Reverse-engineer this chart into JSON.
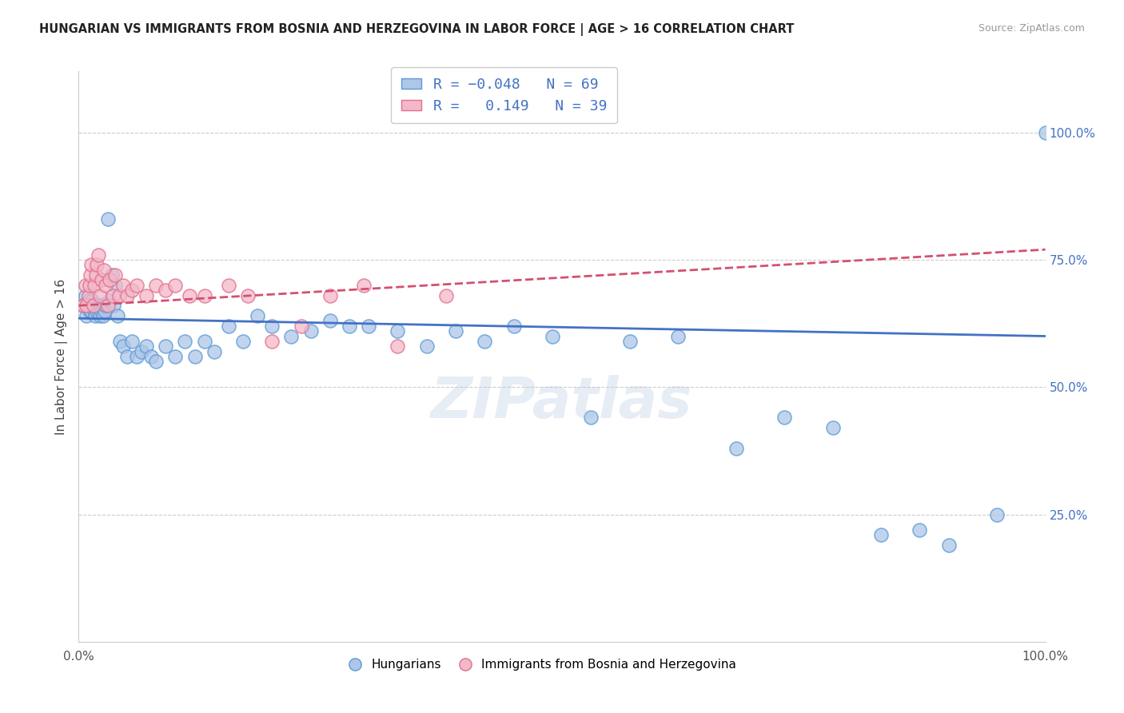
{
  "title": "HUNGARIAN VS IMMIGRANTS FROM BOSNIA AND HERZEGOVINA IN LABOR FORCE | AGE > 16 CORRELATION CHART",
  "source": "Source: ZipAtlas.com",
  "ylabel": "In Labor Force | Age > 16",
  "right_ytick_labels": [
    "100.0%",
    "75.0%",
    "50.0%",
    "25.0%"
  ],
  "right_ytick_values": [
    1.0,
    0.75,
    0.5,
    0.25
  ],
  "xmin": 0.0,
  "xmax": 1.0,
  "ymin": 0.0,
  "ymax": 1.12,
  "blue_R": -0.048,
  "blue_N": 69,
  "pink_R": 0.149,
  "pink_N": 39,
  "blue_scatter_color": "#aec6e8",
  "blue_edge_color": "#5b9bd5",
  "blue_line_color": "#4472c4",
  "pink_scatter_color": "#f4b8c8",
  "pink_edge_color": "#e07090",
  "pink_line_color": "#d45070",
  "legend_label_blue": "Hungarians",
  "legend_label_pink": "Immigrants from Bosnia and Herzegovina",
  "blue_scatter_x": [
    0.005,
    0.007,
    0.008,
    0.01,
    0.011,
    0.012,
    0.013,
    0.014,
    0.015,
    0.016,
    0.017,
    0.018,
    0.019,
    0.02,
    0.021,
    0.022,
    0.023,
    0.024,
    0.025,
    0.026,
    0.027,
    0.028,
    0.03,
    0.032,
    0.034,
    0.036,
    0.038,
    0.04,
    0.043,
    0.046,
    0.05,
    0.055,
    0.06,
    0.065,
    0.07,
    0.075,
    0.08,
    0.09,
    0.1,
    0.11,
    0.12,
    0.13,
    0.14,
    0.155,
    0.17,
    0.185,
    0.2,
    0.22,
    0.24,
    0.26,
    0.28,
    0.3,
    0.33,
    0.36,
    0.39,
    0.42,
    0.45,
    0.49,
    0.53,
    0.57,
    0.62,
    0.68,
    0.73,
    0.78,
    0.83,
    0.87,
    0.9,
    0.95,
    1.0
  ],
  "blue_scatter_y": [
    0.66,
    0.68,
    0.64,
    0.67,
    0.65,
    0.66,
    0.65,
    0.67,
    0.66,
    0.65,
    0.64,
    0.66,
    0.65,
    0.66,
    0.65,
    0.64,
    0.66,
    0.65,
    0.64,
    0.66,
    0.65,
    0.66,
    0.83,
    0.67,
    0.72,
    0.66,
    0.7,
    0.64,
    0.59,
    0.58,
    0.56,
    0.59,
    0.56,
    0.57,
    0.58,
    0.56,
    0.55,
    0.58,
    0.56,
    0.59,
    0.56,
    0.59,
    0.57,
    0.62,
    0.59,
    0.64,
    0.62,
    0.6,
    0.61,
    0.63,
    0.62,
    0.62,
    0.61,
    0.58,
    0.61,
    0.59,
    0.62,
    0.6,
    0.44,
    0.59,
    0.6,
    0.38,
    0.44,
    0.42,
    0.21,
    0.22,
    0.19,
    0.25,
    1.0
  ],
  "pink_scatter_x": [
    0.005,
    0.007,
    0.008,
    0.01,
    0.011,
    0.012,
    0.013,
    0.015,
    0.016,
    0.018,
    0.019,
    0.02,
    0.022,
    0.024,
    0.026,
    0.028,
    0.03,
    0.032,
    0.035,
    0.038,
    0.042,
    0.046,
    0.05,
    0.055,
    0.06,
    0.07,
    0.08,
    0.09,
    0.1,
    0.115,
    0.13,
    0.155,
    0.175,
    0.2,
    0.23,
    0.26,
    0.295,
    0.33,
    0.38
  ],
  "pink_scatter_y": [
    0.66,
    0.7,
    0.66,
    0.68,
    0.7,
    0.72,
    0.74,
    0.66,
    0.7,
    0.72,
    0.74,
    0.76,
    0.68,
    0.71,
    0.73,
    0.7,
    0.66,
    0.71,
    0.68,
    0.72,
    0.68,
    0.7,
    0.68,
    0.69,
    0.7,
    0.68,
    0.7,
    0.69,
    0.7,
    0.68,
    0.68,
    0.7,
    0.68,
    0.59,
    0.62,
    0.68,
    0.7,
    0.58,
    0.68
  ],
  "blue_trend_x0": 0.0,
  "blue_trend_y0": 0.635,
  "blue_trend_x1": 1.0,
  "blue_trend_y1": 0.6,
  "pink_trend_x0": 0.0,
  "pink_trend_y0": 0.66,
  "pink_trend_x1": 1.0,
  "pink_trend_y1": 0.77
}
